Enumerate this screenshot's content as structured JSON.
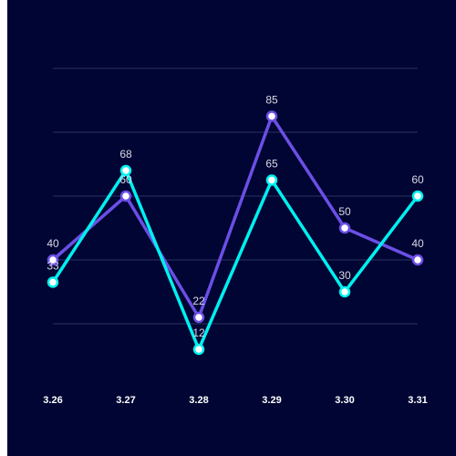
{
  "chart_data": {
    "type": "line",
    "categories": [
      "3.26",
      "3.27",
      "3.28",
      "3.29",
      "3.30",
      "3.31"
    ],
    "ylim": [
      0,
      100
    ],
    "grid": true,
    "series": [
      {
        "values": [
          40,
          60,
          22,
          85,
          50,
          40
        ],
        "color": "#6b4fe6"
      },
      {
        "values": [
          33,
          68,
          12,
          65,
          30,
          60
        ],
        "color": "#00f0f0"
      }
    ]
  },
  "colors": {
    "background": "#000533",
    "gridline": "#2a3262",
    "marker_fill": "#ffffff"
  }
}
